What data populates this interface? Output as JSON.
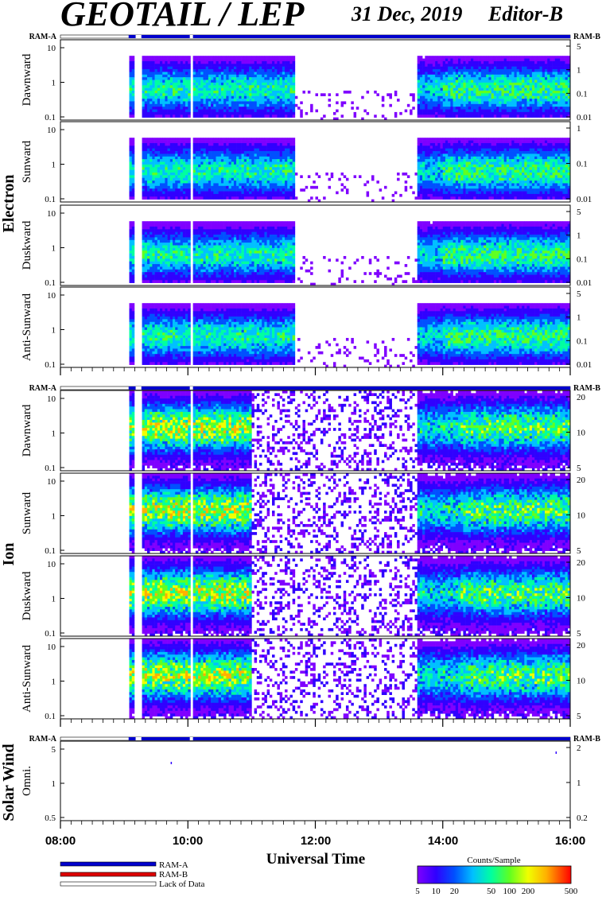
{
  "header": {
    "title": "GEOTAIL / LEP",
    "date": "31 Dec, 2019",
    "editor": "Editor-B"
  },
  "ram": {
    "a": "RAM-A",
    "b": "RAM-B"
  },
  "groups": {
    "electron": "Electron",
    "ion": "Ion",
    "solar_wind": "Solar Wind"
  },
  "chart_data": {
    "type": "heatmap",
    "x_axis": {
      "label": "Universal Time",
      "range_hours": [
        8,
        16
      ],
      "tick_labels": [
        "08:00",
        "10:00",
        "12:00",
        "14:00",
        "16:00"
      ]
    },
    "panels": [
      {
        "group": "Electron",
        "direction": "Dawnward",
        "left_ticks": [
          "10",
          "1",
          "0.1"
        ],
        "right_ticks": [
          "5",
          "1",
          "0.1",
          "0.01"
        ]
      },
      {
        "group": "Electron",
        "direction": "Sunward",
        "left_ticks": [
          "10",
          "1",
          "0.1"
        ],
        "right_ticks": [
          "1",
          "0.1",
          "0.01"
        ]
      },
      {
        "group": "Electron",
        "direction": "Duskward",
        "left_ticks": [
          "10",
          "1",
          "0.1"
        ],
        "right_ticks": [
          "5",
          "1",
          "0.1",
          "0.01"
        ]
      },
      {
        "group": "Electron",
        "direction": "Anti-Sunward",
        "left_ticks": [
          "10",
          "1",
          "0.1"
        ],
        "right_ticks": [
          "5",
          "1",
          "0.1",
          "0.01"
        ]
      },
      {
        "group": "Ion",
        "direction": "Dawnward",
        "left_ticks": [
          "10",
          "1",
          "0.1"
        ],
        "right_ticks": [
          "20",
          "10",
          "5"
        ]
      },
      {
        "group": "Ion",
        "direction": "Sunward",
        "left_ticks": [
          "10",
          "1",
          "0.1"
        ],
        "right_ticks": [
          "20",
          "10",
          "5"
        ]
      },
      {
        "group": "Ion",
        "direction": "Duskward",
        "left_ticks": [
          "10",
          "1",
          "0.1"
        ],
        "right_ticks": [
          "20",
          "10",
          "5"
        ]
      },
      {
        "group": "Ion",
        "direction": "Anti-Sunward",
        "left_ticks": [
          "10",
          "1",
          "0.1"
        ],
        "right_ticks": [
          "20",
          "10",
          "5"
        ]
      },
      {
        "group": "Solar Wind",
        "direction": "Omni.",
        "left_ticks": [
          "5",
          "1",
          "0.5"
        ],
        "right_ticks": [
          "2",
          "1",
          "0.2"
        ]
      }
    ],
    "data_gap_hours": [
      [
        9.18,
        9.27
      ],
      [
        10.03,
        10.08
      ]
    ],
    "data_start_hour": 9.07,
    "colorbar": {
      "title": "Counts/Sample",
      "ticks": [
        "5",
        "10",
        "20",
        "50",
        "100",
        "200",
        "500"
      ],
      "colors": [
        "#7f00ff",
        "#3000ff",
        "#0050ff",
        "#00c0ff",
        "#00ffa0",
        "#60ff20",
        "#f0ff00",
        "#ffb000",
        "#ff3000",
        "#ff0000"
      ]
    },
    "legend": [
      {
        "label": "RAM-A",
        "color": "#0000cc"
      },
      {
        "label": "RAM-B",
        "color": "#dd0000"
      },
      {
        "label": "Lack of Data",
        "color": "#ffffff"
      }
    ]
  }
}
